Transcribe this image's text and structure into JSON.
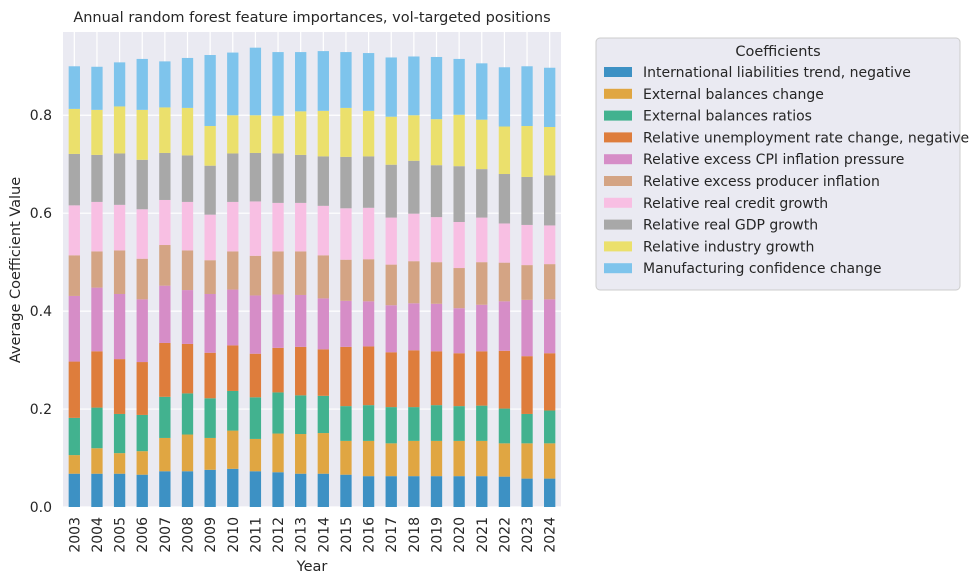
{
  "chart_data": {
    "type": "bar",
    "stacked": true,
    "title": "Annual random forest feature importances, vol-targeted positions",
    "xlabel": "Year",
    "ylabel": "Average Coefficient Value",
    "ylim": [
      0,
      0.97
    ],
    "yticks": [
      "0.0",
      "0.2",
      "0.4",
      "0.6",
      "0.8"
    ],
    "grid": true,
    "legend_title": "Coefficients",
    "legend_position": "outside-right-top",
    "categories": [
      "2003",
      "2004",
      "2005",
      "2006",
      "2007",
      "2008",
      "2009",
      "2010",
      "2011",
      "2012",
      "2013",
      "2014",
      "2015",
      "2016",
      "2017",
      "2018",
      "2019",
      "2020",
      "2021",
      "2022",
      "2023",
      "2024"
    ],
    "series": [
      {
        "name": "International liabilities trend, negative",
        "color": "#3d91c4",
        "values": [
          0.068,
          0.068,
          0.068,
          0.066,
          0.073,
          0.073,
          0.076,
          0.078,
          0.073,
          0.071,
          0.068,
          0.068,
          0.066,
          0.063,
          0.063,
          0.063,
          0.063,
          0.063,
          0.063,
          0.062,
          0.058,
          0.058
        ]
      },
      {
        "name": "External balances change",
        "color": "#e0a642",
        "values": [
          0.038,
          0.052,
          0.042,
          0.048,
          0.068,
          0.075,
          0.065,
          0.078,
          0.066,
          0.079,
          0.081,
          0.083,
          0.069,
          0.072,
          0.067,
          0.072,
          0.072,
          0.072,
          0.072,
          0.068,
          0.072,
          0.072
        ]
      },
      {
        "name": "External balances ratios",
        "color": "#42b28f",
        "values": [
          0.076,
          0.083,
          0.08,
          0.074,
          0.084,
          0.084,
          0.081,
          0.081,
          0.085,
          0.084,
          0.079,
          0.076,
          0.071,
          0.073,
          0.074,
          0.069,
          0.073,
          0.071,
          0.072,
          0.071,
          0.06,
          0.067
        ]
      },
      {
        "name": "Relative unemployment rate change, negative",
        "color": "#de7d3c",
        "values": [
          0.115,
          0.115,
          0.112,
          0.108,
          0.11,
          0.101,
          0.093,
          0.093,
          0.089,
          0.091,
          0.099,
          0.095,
          0.121,
          0.12,
          0.112,
          0.116,
          0.11,
          0.108,
          0.111,
          0.118,
          0.118,
          0.117
        ]
      },
      {
        "name": "Relative excess CPI inflation pressure",
        "color": "#d68dc7",
        "values": [
          0.134,
          0.13,
          0.133,
          0.128,
          0.117,
          0.11,
          0.12,
          0.114,
          0.119,
          0.109,
          0.106,
          0.104,
          0.094,
          0.092,
          0.096,
          0.096,
          0.097,
          0.092,
          0.095,
          0.101,
          0.115,
          0.11
        ]
      },
      {
        "name": "Relative excess producer inflation",
        "color": "#d4a484",
        "values": [
          0.083,
          0.074,
          0.089,
          0.083,
          0.083,
          0.081,
          0.069,
          0.078,
          0.081,
          0.088,
          0.089,
          0.088,
          0.084,
          0.086,
          0.083,
          0.086,
          0.085,
          0.082,
          0.087,
          0.079,
          0.071,
          0.072
        ]
      },
      {
        "name": "Relative real credit growth",
        "color": "#f8bfe3",
        "values": [
          0.102,
          0.101,
          0.093,
          0.101,
          0.092,
          0.099,
          0.093,
          0.101,
          0.111,
          0.099,
          0.099,
          0.101,
          0.105,
          0.105,
          0.096,
          0.097,
          0.092,
          0.094,
          0.091,
          0.08,
          0.082,
          0.079
        ]
      },
      {
        "name": "Relative real GDP growth",
        "color": "#a8a8a8",
        "values": [
          0.105,
          0.096,
          0.105,
          0.101,
          0.096,
          0.095,
          0.1,
          0.099,
          0.099,
          0.101,
          0.098,
          0.101,
          0.105,
          0.105,
          0.108,
          0.108,
          0.106,
          0.114,
          0.099,
          0.101,
          0.098,
          0.102
        ]
      },
      {
        "name": "Relative industry growth",
        "color": "#ebe06c",
        "values": [
          0.092,
          0.092,
          0.096,
          0.102,
          0.093,
          0.097,
          0.081,
          0.078,
          0.077,
          0.077,
          0.089,
          0.093,
          0.1,
          0.093,
          0.098,
          0.093,
          0.094,
          0.105,
          0.101,
          0.097,
          0.104,
          0.099
        ]
      },
      {
        "name": "Manufacturing confidence change",
        "color": "#7ec4ec",
        "values": [
          0.087,
          0.088,
          0.09,
          0.104,
          0.094,
          0.102,
          0.145,
          0.128,
          0.138,
          0.13,
          0.121,
          0.122,
          0.114,
          0.118,
          0.121,
          0.12,
          0.127,
          0.114,
          0.115,
          0.121,
          0.122,
          0.121
        ]
      }
    ]
  }
}
